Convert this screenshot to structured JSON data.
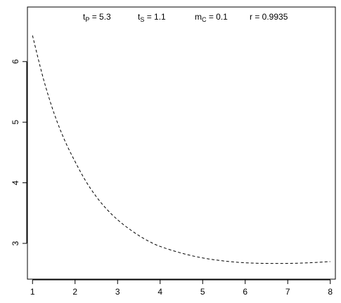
{
  "chart_data": {
    "type": "line",
    "title": "",
    "xlabel": "",
    "ylabel": "",
    "xlim": [
      0.88,
      8.12
    ],
    "ylim": [
      2.41,
      6.9
    ],
    "x_ticks": [
      "1",
      "2",
      "3",
      "4",
      "5",
      "6",
      "7",
      "8"
    ],
    "y_ticks": [
      "3",
      "4",
      "5",
      "6"
    ],
    "grid": false,
    "legend": "none",
    "annotations": [
      {
        "main": "t",
        "sub": "P",
        "value": " = 5.3"
      },
      {
        "main": "t",
        "sub": "S",
        "value": " = 1.1"
      },
      {
        "main": "m",
        "sub": "C",
        "value": " = 0.1"
      },
      {
        "main": "r",
        "sub": "",
        "value": " = 0.9935"
      }
    ],
    "series": [
      {
        "style": "dashed",
        "color": "#000000",
        "x": [
          1.0,
          1.25,
          1.5,
          1.75,
          2.0,
          2.25,
          2.5,
          2.75,
          3.0,
          3.25,
          3.5,
          3.75,
          4.0,
          4.5,
          5.0,
          5.5,
          6.0,
          6.5,
          7.0,
          7.5,
          8.0
        ],
        "y": [
          6.43,
          5.73,
          5.16,
          4.71,
          4.35,
          4.03,
          3.77,
          3.56,
          3.39,
          3.25,
          3.13,
          3.03,
          2.95,
          2.84,
          2.76,
          2.71,
          2.68,
          2.67,
          2.67,
          2.68,
          2.7
        ]
      }
    ]
  }
}
